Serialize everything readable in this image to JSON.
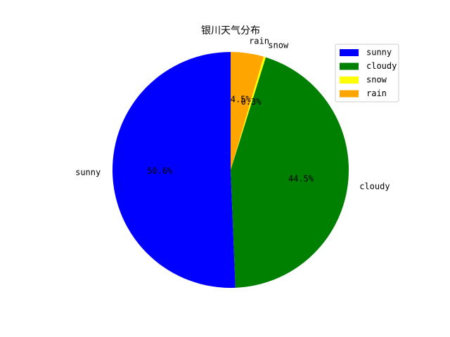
{
  "chart_data": {
    "type": "pie",
    "title": "银川天气分布",
    "categories": [
      "sunny",
      "cloudy",
      "snow",
      "rain"
    ],
    "values": [
      50.6,
      44.5,
      0.3,
      4.5
    ],
    "value_labels": [
      "50.6%",
      "44.5%",
      "0.3%",
      "4.5%"
    ],
    "colors": [
      "#0000ff",
      "#008000",
      "#ffff00",
      "#ffa500"
    ],
    "start_angle_deg": 90,
    "direction": "counterclockwise",
    "legend": {
      "position": "top-right",
      "entries": [
        "sunny",
        "cloudy",
        "snow",
        "rain"
      ]
    }
  }
}
